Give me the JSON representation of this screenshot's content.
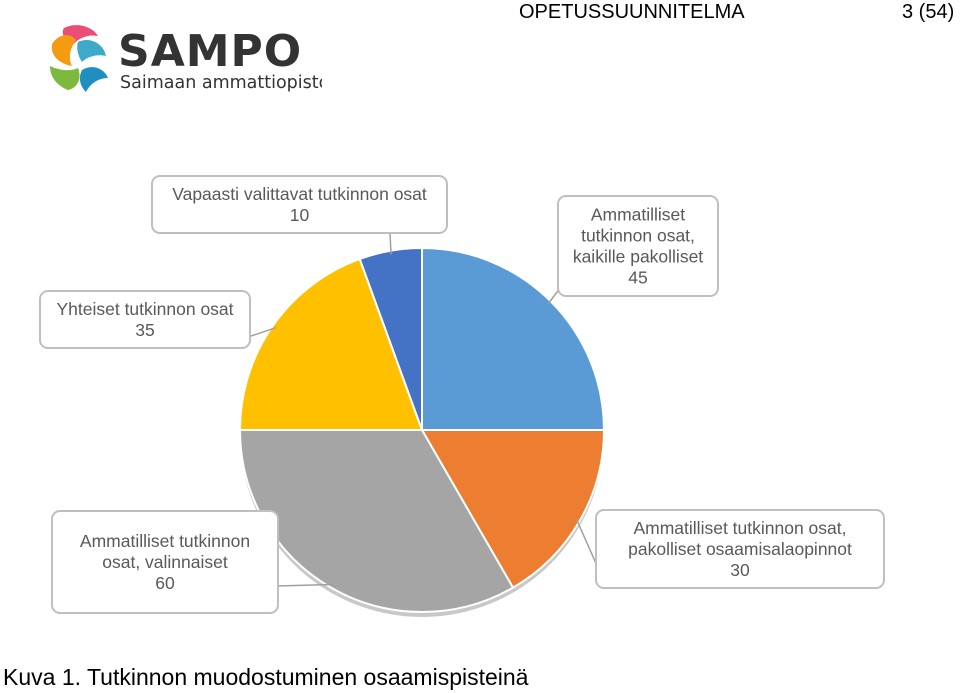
{
  "header": {
    "title": "OPETUSSUUNNITELMA",
    "page": "3 (54)"
  },
  "logo": {
    "name": "SAMPO",
    "subtitle": "Saimaan ammattiopisto"
  },
  "caption": "Kuva 1. Tutkinnon muodostuminen osaamispisteinä",
  "chart_data": {
    "type": "pie",
    "start_angle_deg": 0,
    "direction": "clockwise",
    "slices": [
      {
        "label_lines": [
          "Ammatilliset",
          "tutkinnon osat,",
          "kaikille pakolliset"
        ],
        "value": 45,
        "color": "#5B9BD5"
      },
      {
        "label_lines": [
          "Ammatilliset tutkinnon osat,",
          "pakolliset osaamisalaopinnot"
        ],
        "value": 30,
        "color": "#ED7D31"
      },
      {
        "label_lines": [
          "Ammatilliset tutkinnon",
          "osat, valinnaiset"
        ],
        "value": 60,
        "color": "#A5A5A5"
      },
      {
        "label_lines": [
          "Yhteiset tutkinnon osat"
        ],
        "value": 35,
        "color": "#FFC000"
      },
      {
        "label_lines": [
          "Vapaasti valittavat tutkinnon osat"
        ],
        "value": 10,
        "color": "#4472C4"
      }
    ],
    "legend": "none (data callouts)"
  }
}
